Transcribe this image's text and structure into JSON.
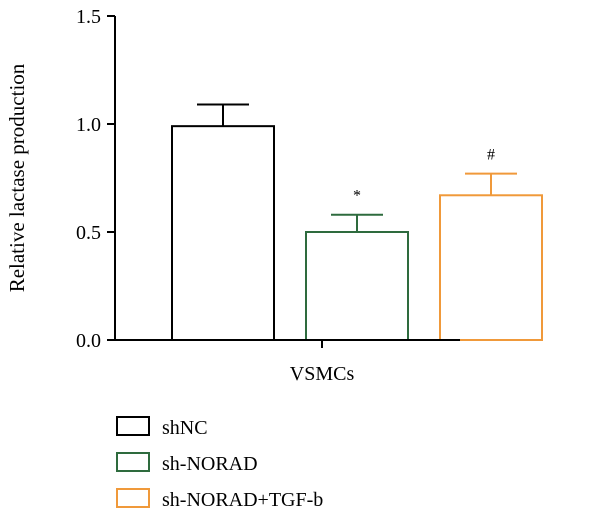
{
  "chart_data": {
    "type": "bar",
    "categories": [
      "VSMCs"
    ],
    "series": [
      {
        "name": "shNC",
        "values": [
          0.99
        ],
        "error": [
          0.1
        ],
        "color": "#000000",
        "annotation": ""
      },
      {
        "name": "sh-NORAD",
        "values": [
          0.5
        ],
        "error": [
          0.08
        ],
        "color": "#2e6b3e",
        "annotation": "*"
      },
      {
        "name": "sh-NORAD+TGF-b",
        "values": [
          0.67
        ],
        "error": [
          0.1
        ],
        "color": "#f0993a",
        "annotation": "#"
      }
    ],
    "ylabel": "Relative lactase production",
    "xlabel": "VSMCs",
    "ylim": [
      0,
      1.5
    ],
    "yticks": [
      0.0,
      0.5,
      1.0,
      1.5
    ],
    "ytick_labels": [
      "0.0",
      "0.5",
      "1.0",
      "1.5"
    ],
    "legend_position": "bottom-left"
  }
}
